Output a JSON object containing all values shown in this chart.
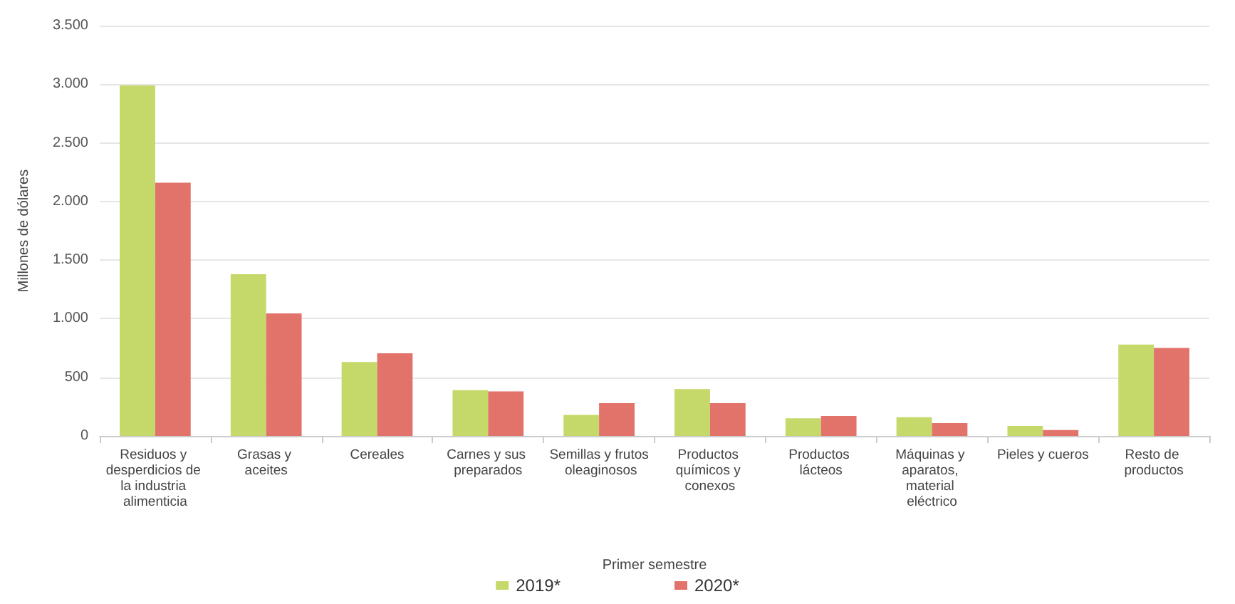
{
  "chart_data": {
    "type": "bar",
    "categories": [
      "Residuos y desperdicios de la industria alimenticia",
      "Grasas y aceites",
      "Cereales",
      "Carnes y sus preparados",
      "Semillas y frutos oleaginosos",
      "Productos químicos y conexos",
      "Productos lácteos",
      "Máquinas y aparatos, material eléctrico",
      "Pieles y cueros",
      "Resto de productos"
    ],
    "series": [
      {
        "name": "2019*",
        "color": "#c5d96b",
        "values": [
          2990,
          1380,
          630,
          390,
          180,
          400,
          150,
          160,
          85,
          780
        ]
      },
      {
        "name": "2020*",
        "color": "#e2736a",
        "values": [
          2160,
          1045,
          705,
          380,
          280,
          280,
          170,
          110,
          50,
          750
        ]
      }
    ],
    "xlabel": "Primer semestre",
    "ylabel": "Millones de dólares",
    "ylim": [
      0,
      3500
    ],
    "yticks": [
      0,
      500,
      {
        "value": 1000,
        "label": "1.000"
      },
      {
        "value": 1500,
        "label": "1.500"
      },
      {
        "value": 2000,
        "label": "2.000"
      },
      {
        "value": 2500,
        "label": "2.500"
      },
      {
        "value": 3000,
        "label": "3.000"
      },
      {
        "value": 3500,
        "label": "3.500"
      }
    ],
    "grid": "y",
    "legend": "bottom"
  }
}
